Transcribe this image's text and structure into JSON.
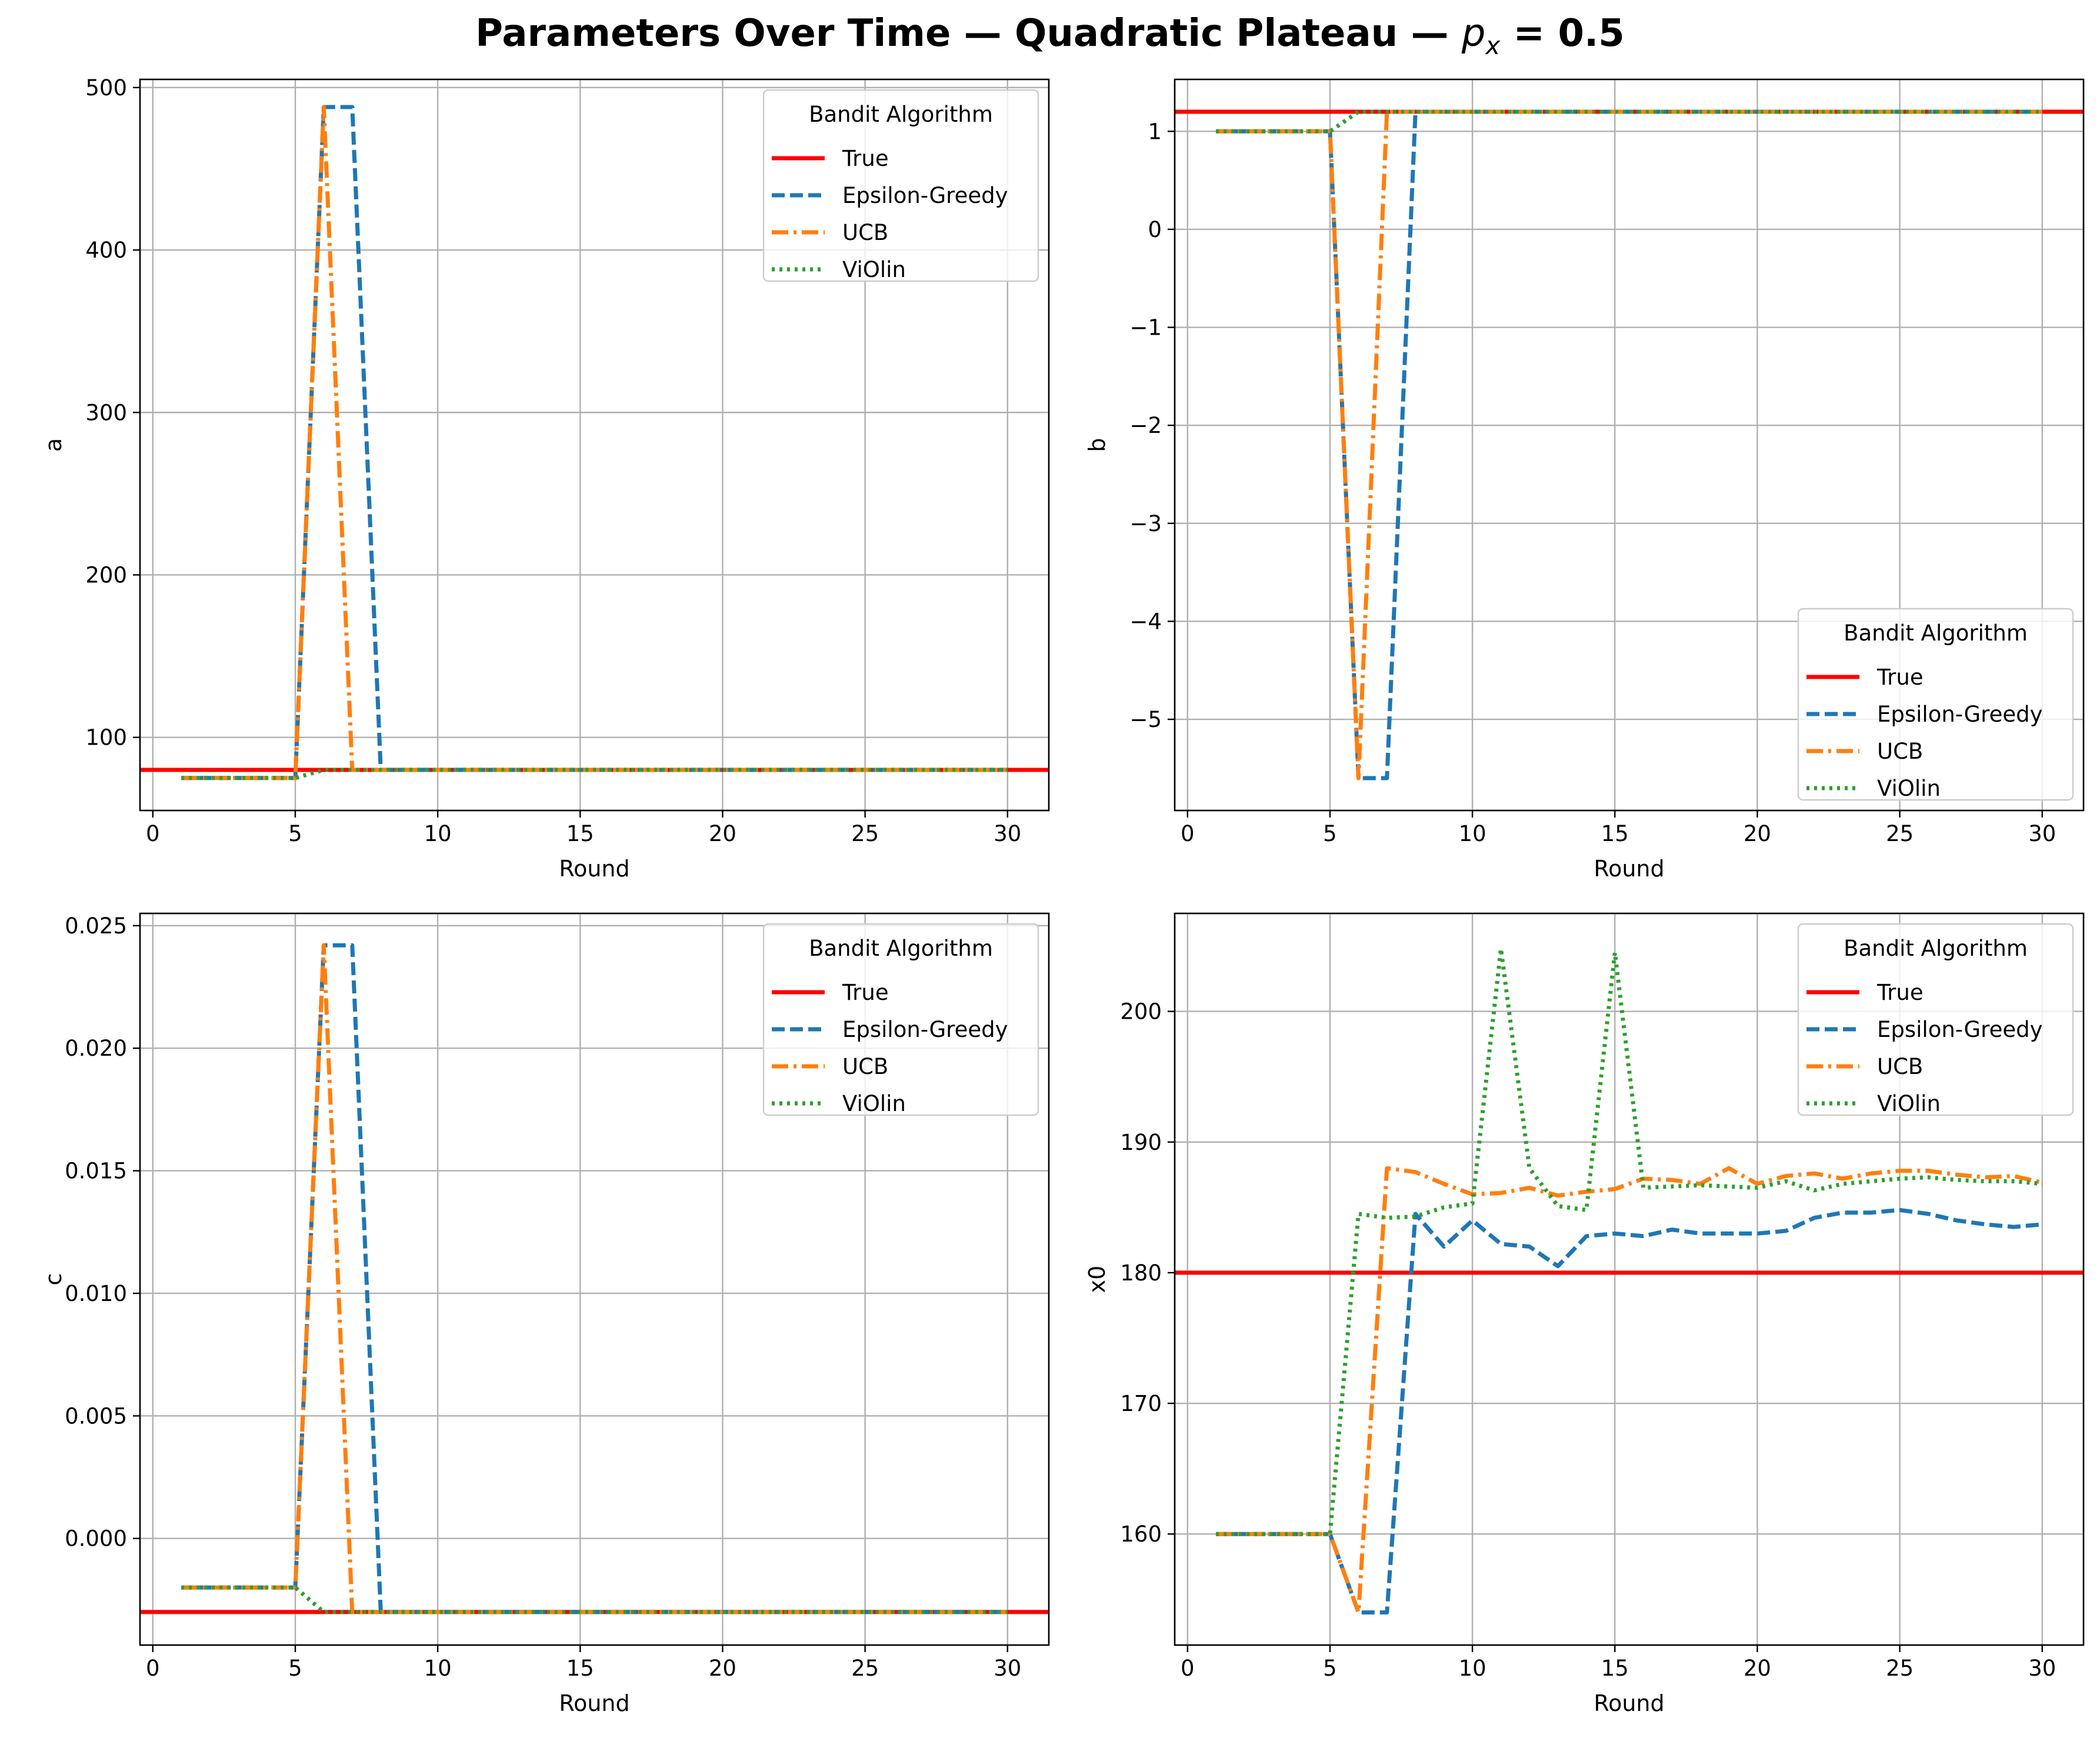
{
  "figure": {
    "title_prefix": "Parameters Over Time — Quadratic Plateau — ",
    "title_symbol": "p",
    "title_subscript": "x",
    "title_suffix": " = 0.5"
  },
  "legend_title": "Bandit Algorithm",
  "legend_labels": [
    "True",
    "Epsilon-Greedy",
    "UCB",
    "ViOlin"
  ],
  "colors": {
    "true": "#ff0000",
    "epsilon_greedy": "#1f77b4",
    "ucb": "#ff7f0e",
    "violin": "#2ca02c"
  },
  "chart_data": [
    {
      "type": "line",
      "xlabel": "Round",
      "ylabel": "a",
      "xlim": [
        -0.45,
        31.45
      ],
      "ylim": [
        55,
        505
      ],
      "xticks": [
        0,
        5,
        10,
        15,
        20,
        25,
        30
      ],
      "xtick_labels": [
        "0",
        "5",
        "10",
        "15",
        "20",
        "25",
        "30"
      ],
      "yticks": [
        100,
        200,
        300,
        400,
        500
      ],
      "ytick_labels": [
        "100",
        "200",
        "300",
        "400",
        "500"
      ],
      "grid": true,
      "legend_loc": "upper right",
      "true_value": 80,
      "x": [
        1,
        2,
        3,
        4,
        5,
        6,
        7,
        8,
        9,
        10,
        11,
        12,
        13,
        14,
        15,
        16,
        17,
        18,
        19,
        20,
        21,
        22,
        23,
        24,
        25,
        26,
        27,
        28,
        29,
        30
      ],
      "series": [
        {
          "name": "Epsilon-Greedy",
          "values": [
            75,
            75,
            75,
            75,
            75,
            488,
            488,
            80,
            80,
            80,
            80,
            80,
            80,
            80,
            80,
            80,
            80,
            80,
            80,
            80,
            80,
            80,
            80,
            80,
            80,
            80,
            80,
            80,
            80,
            80
          ]
        },
        {
          "name": "UCB",
          "values": [
            75,
            75,
            75,
            75,
            75,
            488,
            80,
            80,
            80,
            80,
            80,
            80,
            80,
            80,
            80,
            80,
            80,
            80,
            80,
            80,
            80,
            80,
            80,
            80,
            80,
            80,
            80,
            80,
            80,
            80
          ]
        },
        {
          "name": "ViOlin",
          "values": [
            75,
            75,
            75,
            75,
            75,
            80,
            80,
            80,
            80,
            80,
            80,
            80,
            80,
            80,
            80,
            80,
            80,
            80,
            80,
            80,
            80,
            80,
            80,
            80,
            80,
            80,
            80,
            80,
            80,
            80
          ]
        }
      ]
    },
    {
      "type": "line",
      "xlabel": "Round",
      "ylabel": "b",
      "xlim": [
        -0.45,
        31.45
      ],
      "ylim": [
        -5.93,
        1.53
      ],
      "xticks": [
        0,
        5,
        10,
        15,
        20,
        25,
        30
      ],
      "xtick_labels": [
        "0",
        "5",
        "10",
        "15",
        "20",
        "25",
        "30"
      ],
      "yticks": [
        -5,
        -4,
        -3,
        -2,
        -1,
        0,
        1
      ],
      "ytick_labels": [
        "−5",
        "−4",
        "−3",
        "−2",
        "−1",
        "0",
        "1"
      ],
      "grid": true,
      "legend_loc": "lower right",
      "true_value": 1.2,
      "x": [
        1,
        2,
        3,
        4,
        5,
        6,
        7,
        8,
        9,
        10,
        11,
        12,
        13,
        14,
        15,
        16,
        17,
        18,
        19,
        20,
        21,
        22,
        23,
        24,
        25,
        26,
        27,
        28,
        29,
        30
      ],
      "series": [
        {
          "name": "Epsilon-Greedy",
          "values": [
            1.0,
            1.0,
            1.0,
            1.0,
            1.0,
            -5.6,
            -5.6,
            1.2,
            1.2,
            1.2,
            1.2,
            1.2,
            1.2,
            1.2,
            1.2,
            1.2,
            1.2,
            1.2,
            1.2,
            1.2,
            1.2,
            1.2,
            1.2,
            1.2,
            1.2,
            1.2,
            1.2,
            1.2,
            1.2,
            1.2
          ]
        },
        {
          "name": "UCB",
          "values": [
            1.0,
            1.0,
            1.0,
            1.0,
            1.0,
            -5.6,
            1.2,
            1.2,
            1.2,
            1.2,
            1.2,
            1.2,
            1.2,
            1.2,
            1.2,
            1.2,
            1.2,
            1.2,
            1.2,
            1.2,
            1.2,
            1.2,
            1.2,
            1.2,
            1.2,
            1.2,
            1.2,
            1.2,
            1.2,
            1.2
          ]
        },
        {
          "name": "ViOlin",
          "values": [
            1.0,
            1.0,
            1.0,
            1.0,
            1.0,
            1.2,
            1.2,
            1.2,
            1.2,
            1.2,
            1.2,
            1.2,
            1.2,
            1.2,
            1.2,
            1.2,
            1.2,
            1.2,
            1.2,
            1.2,
            1.2,
            1.2,
            1.2,
            1.2,
            1.2,
            1.2,
            1.2,
            1.2,
            1.2,
            1.2
          ]
        }
      ]
    },
    {
      "type": "line",
      "xlabel": "Round",
      "ylabel": "c",
      "xlim": [
        -0.45,
        31.45
      ],
      "ylim": [
        -0.00435,
        0.0255
      ],
      "xticks": [
        0,
        5,
        10,
        15,
        20,
        25,
        30
      ],
      "xtick_labels": [
        "0",
        "5",
        "10",
        "15",
        "20",
        "25",
        "30"
      ],
      "yticks": [
        0.0,
        0.005,
        0.01,
        0.015,
        0.02,
        0.025
      ],
      "ytick_labels": [
        "0.000",
        "0.005",
        "0.010",
        "0.015",
        "0.020",
        "0.025"
      ],
      "grid": true,
      "legend_loc": "upper right",
      "true_value": -0.003,
      "x": [
        1,
        2,
        3,
        4,
        5,
        6,
        7,
        8,
        9,
        10,
        11,
        12,
        13,
        14,
        15,
        16,
        17,
        18,
        19,
        20,
        21,
        22,
        23,
        24,
        25,
        26,
        27,
        28,
        29,
        30
      ],
      "series": [
        {
          "name": "Epsilon-Greedy",
          "values": [
            -0.002,
            -0.002,
            -0.002,
            -0.002,
            -0.002,
            0.0242,
            0.0242,
            -0.003,
            -0.003,
            -0.003,
            -0.003,
            -0.003,
            -0.003,
            -0.003,
            -0.003,
            -0.003,
            -0.003,
            -0.003,
            -0.003,
            -0.003,
            -0.003,
            -0.003,
            -0.003,
            -0.003,
            -0.003,
            -0.003,
            -0.003,
            -0.003,
            -0.003,
            -0.003
          ]
        },
        {
          "name": "UCB",
          "values": [
            -0.002,
            -0.002,
            -0.002,
            -0.002,
            -0.002,
            0.0242,
            -0.003,
            -0.003,
            -0.003,
            -0.003,
            -0.003,
            -0.003,
            -0.003,
            -0.003,
            -0.003,
            -0.003,
            -0.003,
            -0.003,
            -0.003,
            -0.003,
            -0.003,
            -0.003,
            -0.003,
            -0.003,
            -0.003,
            -0.003,
            -0.003,
            -0.003,
            -0.003,
            -0.003
          ]
        },
        {
          "name": "ViOlin",
          "values": [
            -0.002,
            -0.002,
            -0.002,
            -0.002,
            -0.002,
            -0.003,
            -0.003,
            -0.003,
            -0.003,
            -0.003,
            -0.003,
            -0.003,
            -0.003,
            -0.003,
            -0.003,
            -0.003,
            -0.003,
            -0.003,
            -0.003,
            -0.003,
            -0.003,
            -0.003,
            -0.003,
            -0.003,
            -0.003,
            -0.003,
            -0.003,
            -0.003,
            -0.003,
            -0.003
          ]
        }
      ]
    },
    {
      "type": "line",
      "xlabel": "Round",
      "ylabel": "x0",
      "xlim": [
        -0.45,
        31.45
      ],
      "ylim": [
        151.5,
        207.5
      ],
      "xticks": [
        0,
        5,
        10,
        15,
        20,
        25,
        30
      ],
      "xtick_labels": [
        "0",
        "5",
        "10",
        "15",
        "20",
        "25",
        "30"
      ],
      "yticks": [
        160,
        170,
        180,
        190,
        200
      ],
      "ytick_labels": [
        "160",
        "170",
        "180",
        "190",
        "200"
      ],
      "grid": true,
      "legend_loc": "upper right",
      "true_value": 180,
      "x": [
        1,
        2,
        3,
        4,
        5,
        6,
        7,
        8,
        9,
        10,
        11,
        12,
        13,
        14,
        15,
        16,
        17,
        18,
        19,
        20,
        21,
        22,
        23,
        24,
        25,
        26,
        27,
        28,
        29,
        30
      ],
      "series": [
        {
          "name": "Epsilon-Greedy",
          "values": [
            160,
            160,
            160,
            160,
            160,
            154,
            154,
            184.5,
            182,
            184,
            182.2,
            182,
            180.5,
            182.8,
            183,
            182.8,
            183.3,
            183,
            183,
            183,
            183.2,
            184.2,
            184.6,
            184.6,
            184.8,
            184.5,
            184,
            183.7,
            183.5,
            183.7
          ]
        },
        {
          "name": "UCB",
          "values": [
            160,
            160,
            160,
            160,
            160,
            154,
            188,
            187.7,
            186.8,
            186,
            186.1,
            186.5,
            185.9,
            186.2,
            186.4,
            187.2,
            187.1,
            186.8,
            188,
            186.8,
            187.4,
            187.6,
            187.2,
            187.6,
            187.8,
            187.8,
            187.5,
            187.3,
            187.4,
            186.9
          ]
        },
        {
          "name": "ViOlin",
          "values": [
            160,
            160,
            160,
            160,
            160,
            184.5,
            184.2,
            184.3,
            185,
            185.3,
            204.8,
            188,
            185.1,
            184.8,
            204.5,
            186.5,
            186.6,
            186.7,
            186.6,
            186.5,
            187,
            186.3,
            186.8,
            187,
            187.2,
            187.3,
            187.1,
            187,
            187,
            186.8
          ]
        }
      ]
    }
  ]
}
